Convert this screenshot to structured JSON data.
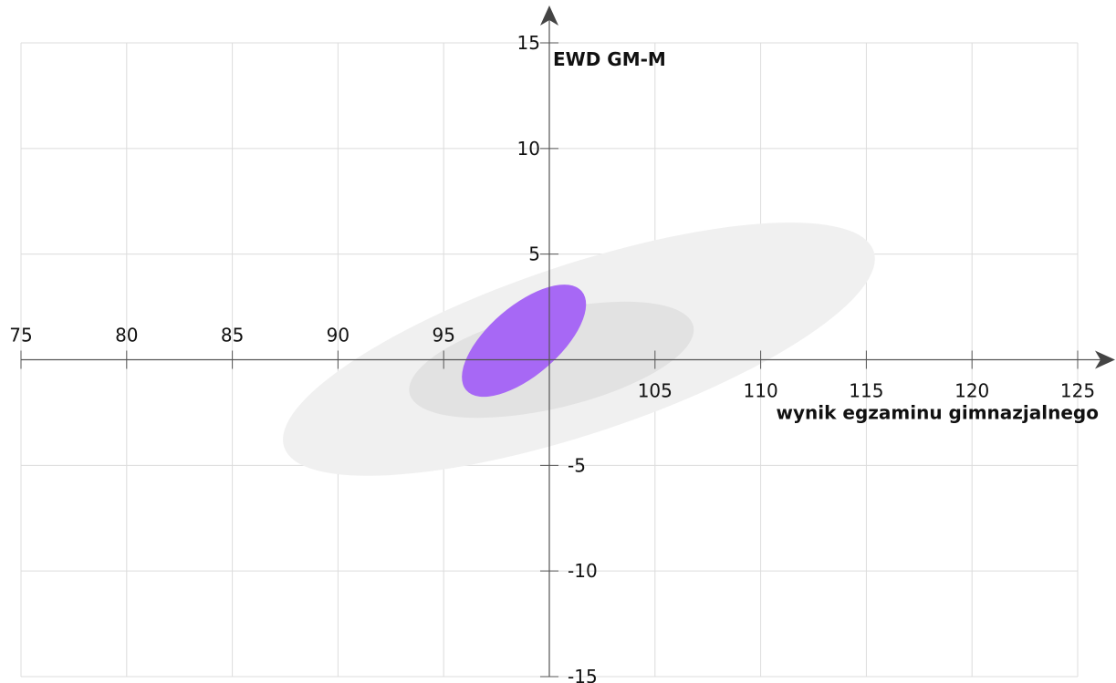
{
  "chart_data": {
    "type": "scatter",
    "title": "",
    "xlabel": "wynik egzaminu gimnazjalnego",
    "ylabel": "EWD GM-M",
    "xlim": [
      75,
      125
    ],
    "ylim": [
      -15,
      15
    ],
    "x_origin": 100,
    "y_origin": 0,
    "x_ticks": [
      75,
      80,
      85,
      90,
      95,
      105,
      110,
      115,
      120,
      125
    ],
    "y_ticks": [
      15,
      10,
      5,
      -5,
      -10,
      -15
    ],
    "grid": true,
    "regions": [
      {
        "cx": 101.4,
        "cy": 0.5,
        "rx": 14.7,
        "ry": 4.0,
        "angle_deg": -18.4,
        "color": "#f0f0f0"
      },
      {
        "cx": 100.1,
        "cy": 0.0,
        "rx": 6.9,
        "ry": 2.3,
        "angle_deg": -13.4,
        "color": "#e2e2e2"
      },
      {
        "cx": 98.8,
        "cy": 0.9,
        "rx": 3.6,
        "ry": 1.65,
        "angle_deg": -40.6,
        "color": "#a768f5"
      }
    ],
    "axis_color": "#444444"
  }
}
